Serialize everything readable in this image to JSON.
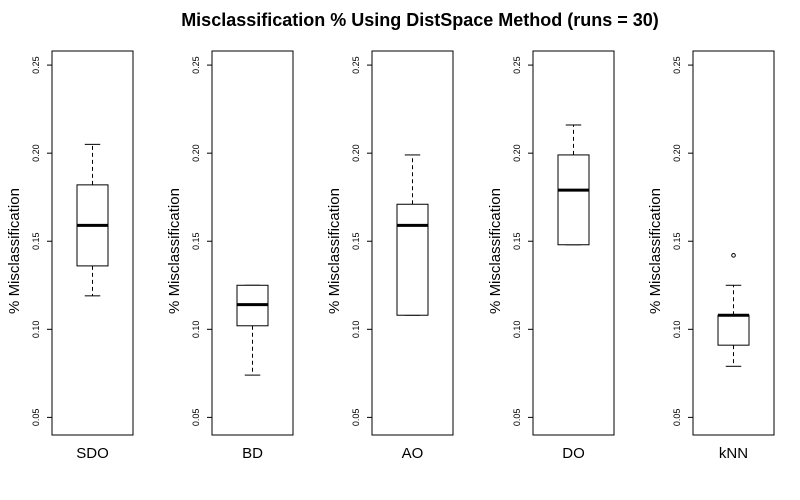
{
  "chart_data": {
    "type": "boxplot",
    "title": "Misclassification % Using DistSpace Method (runs = 30)",
    "ylabel": "% Misclassification",
    "ylim": [
      0.04,
      0.258
    ],
    "yticks": [
      "0.05",
      "0.10",
      "0.15",
      "0.20",
      "0.25"
    ],
    "ytick_values": [
      0.05,
      0.1,
      0.15,
      0.2,
      0.25
    ],
    "grid": false,
    "legend": "none",
    "panels": [
      {
        "name": "SDO",
        "whisker_low": 0.119,
        "q1": 0.136,
        "median": 0.159,
        "q3": 0.182,
        "whisker_high": 0.205,
        "outliers": []
      },
      {
        "name": "BD",
        "whisker_low": 0.074,
        "q1": 0.102,
        "median": 0.114,
        "q3": 0.125,
        "whisker_high": 0.125,
        "outliers": []
      },
      {
        "name": "AO",
        "whisker_low": 0.108,
        "q1": 0.108,
        "median": 0.159,
        "q3": 0.171,
        "whisker_high": 0.199,
        "outliers": []
      },
      {
        "name": "DO",
        "whisker_low": 0.148,
        "q1": 0.148,
        "median": 0.179,
        "q3": 0.199,
        "whisker_high": 0.216,
        "outliers": []
      },
      {
        "name": "kNN",
        "whisker_low": 0.079,
        "q1": 0.091,
        "median": 0.108,
        "q3": 0.108,
        "whisker_high": 0.125,
        "outliers": [
          0.142
        ]
      }
    ]
  }
}
